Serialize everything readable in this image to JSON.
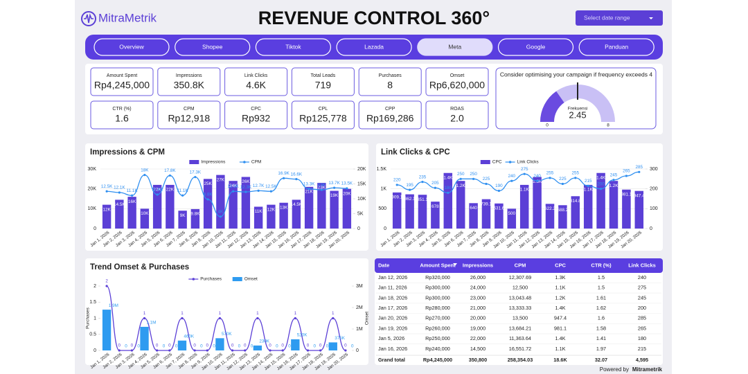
{
  "header": {
    "brand": "MitraMetrik",
    "title": "REVENUE CONTROL 360°",
    "date_picker": "Select date range"
  },
  "nav": {
    "items": [
      "Overview",
      "Shopee",
      "Tiktok",
      "Lazada",
      "Meta",
      "Google",
      "Panduan"
    ],
    "active": "Meta"
  },
  "kpis": [
    {
      "label": "Amount Spent",
      "value": "Rp4,245,000"
    },
    {
      "label": "Impressions",
      "value": "350.8K"
    },
    {
      "label": "Link Clicks",
      "value": "4.6K"
    },
    {
      "label": "Total Leads",
      "value": "719"
    },
    {
      "label": "Purchases",
      "value": "8"
    },
    {
      "label": "Omset",
      "value": "Rp6,620,000"
    },
    {
      "label": "CTR (%)",
      "value": "1.6"
    },
    {
      "label": "CPM",
      "value": "Rp12,918"
    },
    {
      "label": "CPC",
      "value": "Rp932"
    },
    {
      "label": "CPL",
      "value": "Rp125,778"
    },
    {
      "label": "CPP",
      "value": "Rp169,286"
    },
    {
      "label": "ROAS",
      "value": "2.0"
    }
  ],
  "gauge": {
    "title": "Consider optimising your campaign if frequency exceeds 4",
    "label": "Frekuensi",
    "value": 2.45,
    "min": 0,
    "max": 8,
    "threshold": 4
  },
  "chart_data": [
    {
      "type": "bar",
      "title": "Impressions & CPM",
      "categories": [
        "Jan 1, 2026",
        "Jan 2, 2026",
        "Jan 3, 2026",
        "Jan 4, 2026",
        "Jan 5, 2026",
        "Jan 6, 2026",
        "Jan 7, 2026",
        "Jan 8, 2026",
        "Jan 9, 2026",
        "Jan 10, 2026",
        "Jan 11, 2026",
        "Jan 12, 2026",
        "Jan 13, 2026",
        "Jan 14, 2026",
        "Jan 15, 2026",
        "Jan 16, 2026",
        "Jan 17, 2026",
        "Jan 18, 2026",
        "Jan 19, 2026",
        "Jan 20, 2026"
      ],
      "series": [
        {
          "name": "Impressions",
          "type": "bar",
          "color": "#5b3fd6",
          "label_position": "inside",
          "values": [
            12000,
            14500,
            16000,
            10000,
            22000,
            22000,
            9000,
            9800,
            25000,
            27000,
            24000,
            26000,
            11000,
            12000,
            13000,
            14500,
            21000,
            23000,
            19000,
            20000
          ],
          "value_labels": [
            "12K",
            "14.5K",
            "16K",
            "10K",
            "22K",
            "22K",
            "9K",
            "9.8K",
            "25K",
            "27K",
            "24K",
            "26K",
            "11K",
            "12K",
            "13K",
            "14.5K",
            "21K",
            "23K",
            "19K",
            "20K"
          ]
        },
        {
          "name": "CPM",
          "type": "line",
          "axis": "y2",
          "color": "#2f8ff0",
          "values": [
            12500,
            12100,
            11100,
            18000,
            11400,
            17800,
            11100,
            17300,
            9800,
            4000,
            12500,
            12300,
            12700,
            12500,
            16900,
            16600,
            13300,
            13000,
            13700,
            13500
          ],
          "value_labels": [
            "12.5K",
            "12.1K",
            "11.1K",
            "18K",
            "11.4K",
            "17.8K",
            "11.1K",
            "17.3K",
            "9.8K",
            "4K",
            "12.5K",
            "12.3K",
            "12.7K",
            "12.5K",
            "16.9K",
            "16.6K",
            "13.3K",
            "13K",
            "13.7K",
            "13.5K"
          ]
        }
      ],
      "ylim": [
        0,
        30000
      ],
      "yticks": [
        0,
        {
          "value": 10000,
          "label": "10K"
        },
        {
          "value": 20000,
          "label": "20K"
        },
        {
          "value": 30000,
          "label": "30K"
        }
      ],
      "y2lim": [
        0,
        20000
      ],
      "y2ticks": [
        0,
        {
          "value": 5000,
          "label": "5K"
        },
        {
          "value": 10000,
          "label": "10K"
        },
        {
          "value": 15000,
          "label": "15K"
        },
        {
          "value": 20000,
          "label": "20K"
        }
      ],
      "grid": true
    },
    {
      "type": "bar",
      "title": "Link Clicks & CPC",
      "categories": [
        "Jan 1, 2026",
        "Jan 2, 2026",
        "Jan 3, 2026",
        "Jan 4, 2026",
        "Jan 5, 2026",
        "Jan 6, 2026",
        "Jan 7, 2026",
        "Jan 8, 2026",
        "Jan 9, 2026",
        "Jan 10, 2026",
        "Jan 11, 2026",
        "Jan 12, 2026",
        "Jan 13, 2026",
        "Jan 14, 2026",
        "Jan 15, 2026",
        "Jan 16, 2026",
        "Jan 17, 2026",
        "Jan 18, 2026",
        "Jan 19, 2026",
        "Jan 20, 2026"
      ],
      "series": [
        {
          "name": "CPC",
          "type": "bar",
          "color": "#5b3fd6",
          "label_position": "inside",
          "values": [
            909.1,
            862.1,
            851.1,
            678,
            1400,
            1200,
            640,
            739.1,
            631.6,
            500,
            1100,
            1300,
            622.2,
            588.2,
            814.8,
            1100,
            1400,
            1200,
            981.1,
            947.4
          ],
          "value_labels": [
            "909.1",
            "862.1",
            "851.1",
            "678",
            "1.4K",
            "1.2K",
            "640",
            "739.1",
            "631.6",
            "500",
            "1.1K",
            "1.3K",
            "622.2",
            "588.2",
            "814.8",
            "1.1K",
            "1.4K",
            "1.2K",
            "981.1",
            "947.4"
          ]
        },
        {
          "name": "Link Clicks",
          "type": "line",
          "axis": "y2",
          "color": "#2f8ff0",
          "values": [
            220,
            195,
            235,
            205,
            180,
            250,
            250,
            225,
            190,
            240,
            275,
            240,
            255,
            225,
            255,
            215,
            200,
            245,
            265,
            285
          ]
        }
      ],
      "ylim": [
        0,
        1500
      ],
      "yticks": [
        0,
        500,
        {
          "value": 1000,
          "label": "1K"
        },
        {
          "value": 1500,
          "label": "1.5K"
        }
      ],
      "y2lim": [
        0,
        300
      ],
      "y2ticks": [
        0,
        100,
        200,
        300
      ],
      "grid": true
    },
    {
      "type": "bar",
      "title": "Trend Omset & Purchases",
      "y_label": "Purchases",
      "y2_label": "Omset",
      "categories": [
        "Jan 1, 2026",
        "Jan 2, 2026",
        "Jan 3, 2026",
        "Jan 4, 2026",
        "Jan 5, 2026",
        "Jan 6, 2026",
        "Jan 7, 2026",
        "Jan 8, 2026",
        "Jan 9, 2026",
        "Jan 10, 2026",
        "Jan 11, 2026",
        "Jan 12, 2026",
        "Jan 13, 2026",
        "Jan 14, 2026",
        "Jan 15, 2026",
        "Jan 16, 2026",
        "Jan 17, 2026",
        "Jan 18, 2026",
        "Jan 19, 2026",
        "Jan 20, 2026"
      ],
      "series": [
        {
          "name": "Purchases",
          "type": "line",
          "color": "#5b3fd6",
          "values": [
            2,
            0,
            0,
            1,
            0,
            0,
            1,
            0,
            0,
            1,
            0,
            0,
            1,
            0,
            0,
            1,
            0,
            0,
            1,
            0
          ]
        },
        {
          "name": "Omset",
          "type": "bar",
          "axis": "y2",
          "color": "#2e9bf0",
          "label_position": "above",
          "values": [
            1900000,
            0,
            0,
            1100000,
            0,
            0,
            460000,
            0,
            0,
            570000,
            0,
            0,
            230000,
            0,
            0,
            520000,
            0,
            0,
            375000,
            0
          ],
          "value_labels": [
            "1.9M",
            "0",
            "0",
            "1.1M",
            "0",
            "0",
            "460K",
            "0",
            "0",
            "570K",
            "0",
            "0",
            "230K",
            "0",
            "0",
            "520K",
            "0",
            "0",
            "375K",
            "0"
          ]
        }
      ],
      "ylim": [
        0,
        2
      ],
      "yticks": [
        0,
        0.5,
        1,
        1.5,
        2
      ],
      "y2lim": [
        0,
        3000000
      ],
      "y2ticks": [
        0,
        {
          "value": 1000000,
          "label": "1M"
        },
        {
          "value": 2000000,
          "label": "2M"
        },
        {
          "value": 3000000,
          "label": "3M"
        }
      ],
      "grid": false
    }
  ],
  "table": {
    "columns": [
      "Date",
      "Amount Spent",
      "Impressions",
      "CPM",
      "CPC",
      "CTR (%)",
      "Link Clicks"
    ],
    "rows": [
      [
        "Jan 12, 2026",
        "Rp320,000",
        "26,000",
        "12,307.69",
        "1.3K",
        "1.5",
        "240"
      ],
      [
        "Jan 11, 2026",
        "Rp300,000",
        "24,000",
        "12,500",
        "1.1K",
        "1.5",
        "275"
      ],
      [
        "Jan 18, 2026",
        "Rp300,000",
        "23,000",
        "13,043.48",
        "1.2K",
        "1.61",
        "245"
      ],
      [
        "Jan 17, 2026",
        "Rp280,000",
        "21,000",
        "13,333.33",
        "1.4K",
        "1.62",
        "200"
      ],
      [
        "Jan 20, 2026",
        "Rp270,000",
        "20,000",
        "13,500",
        "947.4",
        "1.6",
        "285"
      ],
      [
        "Jan 19, 2026",
        "Rp260,000",
        "19,000",
        "13,684.21",
        "981.1",
        "1.58",
        "265"
      ],
      [
        "Jan 5, 2026",
        "Rp250,000",
        "22,000",
        "11,363.64",
        "1.4K",
        "1.41",
        "180"
      ],
      [
        "Jan 16, 2026",
        "Rp240,000",
        "14,500",
        "16,551.72",
        "1.1K",
        "1.97",
        "215"
      ]
    ],
    "total": [
      "Grand total",
      "Rp4,245,000",
      "350,800",
      "258,354.03",
      "18.6K",
      "32.07",
      "4,595"
    ]
  },
  "footer": {
    "prefix": "Powered by",
    "brand": "Mitrametrik"
  }
}
